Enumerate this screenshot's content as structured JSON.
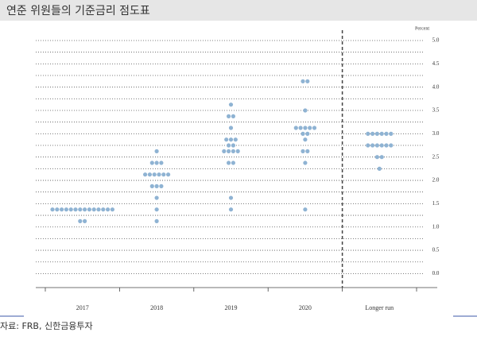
{
  "chart_data": {
    "type": "dot",
    "title": "연준 위원들의 기준금리 점도표",
    "y_label": "Percent",
    "source": "자료: FRB, 신한금융투자",
    "categories": [
      "2017",
      "2018",
      "2019",
      "2020",
      "Longer run"
    ],
    "dots": [
      [
        1.375,
        1.375,
        1.375,
        1.375,
        1.375,
        1.375,
        1.375,
        1.375,
        1.375,
        1.375,
        1.375,
        1.375,
        1.375,
        1.375,
        1.125,
        1.125
      ],
      [
        2.625,
        2.375,
        2.375,
        2.375,
        2.125,
        2.125,
        2.125,
        2.125,
        2.125,
        2.125,
        1.875,
        1.875,
        1.875,
        1.625,
        1.375,
        1.125
      ],
      [
        3.625,
        3.375,
        3.375,
        3.125,
        2.875,
        2.875,
        2.875,
        2.75,
        2.75,
        2.625,
        2.625,
        2.625,
        2.625,
        2.375,
        2.375,
        1.625,
        1.375
      ],
      [
        4.125,
        4.125,
        3.5,
        3.125,
        3.125,
        3.125,
        3.125,
        3.125,
        3.0,
        3.0,
        2.875,
        2.625,
        2.625,
        2.375,
        1.375
      ],
      [
        3.0,
        3.0,
        3.0,
        3.0,
        3.0,
        3.0,
        2.75,
        2.75,
        2.75,
        2.75,
        2.75,
        2.75,
        2.5,
        2.5,
        2.25
      ]
    ],
    "color": "#8fb3d3",
    "ylim": [
      -0.3,
      5.0
    ],
    "yticks": [
      {
        "value": 5.0,
        "label": "5.0"
      },
      {
        "value": 4.5,
        "label": "4.5"
      },
      {
        "value": 4.0,
        "label": "4.0"
      },
      {
        "value": 3.5,
        "label": "3.5"
      },
      {
        "value": 3.0,
        "label": "3.0"
      },
      {
        "value": 2.5,
        "label": "2.5"
      },
      {
        "value": 2.0,
        "label": "2.0"
      },
      {
        "value": 1.5,
        "label": "1.5"
      },
      {
        "value": 1.0,
        "label": "1.0"
      },
      {
        "value": 0.5,
        "label": "0.5"
      },
      {
        "value": 0.0,
        "label": "0.0"
      }
    ],
    "grid": true
  }
}
